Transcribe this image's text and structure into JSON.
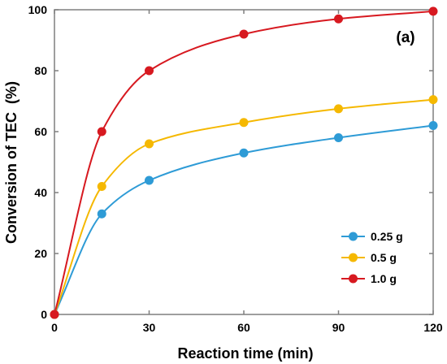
{
  "chart_data": {
    "type": "line",
    "title": "",
    "panel_label": "(a)",
    "xlabel": "Reaction time (min)",
    "ylabel": "Conversion of TEC  (%)",
    "xlim": [
      0,
      120
    ],
    "ylim": [
      0,
      100
    ],
    "x_ticks": [
      "0",
      "30",
      "60",
      "90",
      "120"
    ],
    "y_ticks": [
      "0",
      "20",
      "40",
      "60",
      "80",
      "100"
    ],
    "legend_position": "lower-right",
    "grid": false,
    "x": [
      0,
      15,
      30,
      60,
      90,
      120
    ],
    "series": [
      {
        "name": "0.25 g",
        "color": "#2E9BD6",
        "values": [
          0,
          33,
          44,
          53,
          58,
          62
        ]
      },
      {
        "name": "0.5 g",
        "color": "#F5B800",
        "values": [
          0,
          42,
          56,
          63,
          67.5,
          70.5
        ]
      },
      {
        "name": "1.0 g",
        "color": "#D71920",
        "values": [
          0,
          60,
          80,
          92,
          97,
          99.5
        ]
      }
    ]
  }
}
